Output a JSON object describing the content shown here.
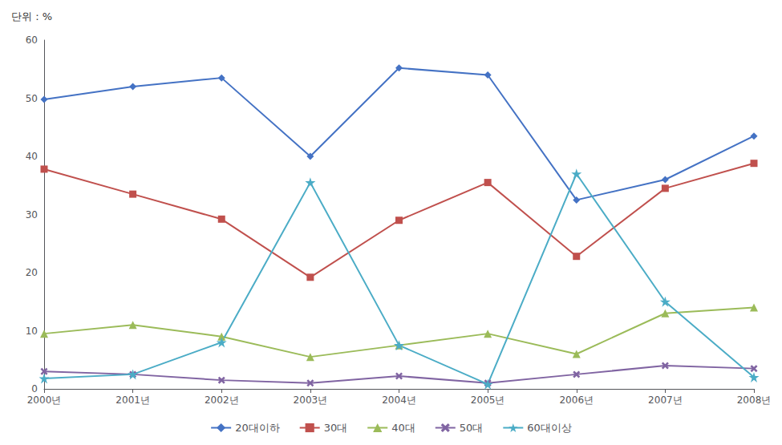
{
  "chart_data": {
    "type": "line",
    "annotations": [
      "단위 : %"
    ],
    "categories": [
      "2000년",
      "2001년",
      "2002년",
      "2003년",
      "2004년",
      "2005년",
      "2006년",
      "2007년",
      "2008년"
    ],
    "series": [
      {
        "name": "20대이하",
        "color": "#4472C4",
        "marker": "diamond",
        "values": [
          49.8,
          52.0,
          53.5,
          40.0,
          55.2,
          54.0,
          32.5,
          36.0,
          43.5
        ]
      },
      {
        "name": "30대",
        "color": "#C0504D",
        "marker": "square",
        "values": [
          37.8,
          33.5,
          29.2,
          19.2,
          29.0,
          35.5,
          22.8,
          34.5,
          38.8
        ]
      },
      {
        "name": "40대",
        "color": "#9BBB59",
        "marker": "triangle",
        "values": [
          9.5,
          11.0,
          9.0,
          5.5,
          7.5,
          9.5,
          6.0,
          13.0,
          14.0
        ]
      },
      {
        "name": "50대",
        "color": "#8064A2",
        "marker": "x",
        "values": [
          3.0,
          2.5,
          1.5,
          1.0,
          2.2,
          1.0,
          2.5,
          4.0,
          3.5
        ]
      },
      {
        "name": "60대이상",
        "color": "#4BACC6",
        "marker": "star",
        "values": [
          1.8,
          2.5,
          8.0,
          35.5,
          7.5,
          0.8,
          37.0,
          15.0,
          2.0
        ]
      }
    ],
    "ylim": [
      0,
      60
    ],
    "yticks": [
      0,
      10,
      20,
      30,
      40,
      50,
      60
    ],
    "grid": false,
    "legend": "bottom"
  }
}
